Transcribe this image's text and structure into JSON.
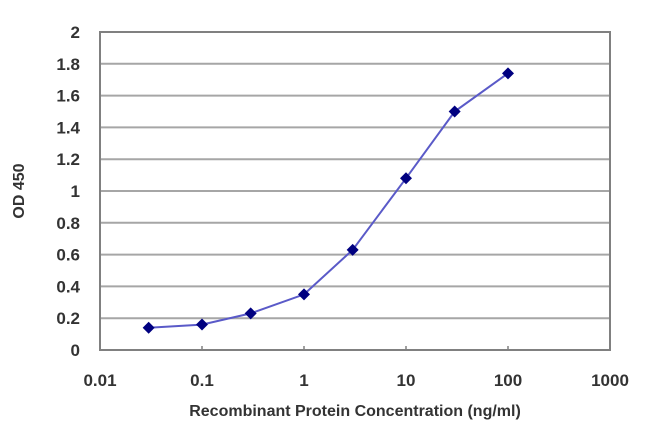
{
  "chart_data": {
    "type": "line",
    "title": "",
    "xlabel": "Recombinant Protein Concentration (ng/ml)",
    "ylabel": "OD 450",
    "xscale": "log",
    "xlim": [
      0.01,
      1000
    ],
    "ylim": [
      0,
      2
    ],
    "x_ticks": [
      "0.01",
      "0.1",
      "1",
      "10",
      "100",
      "1000"
    ],
    "y_ticks": [
      "0",
      "0.2",
      "0.4",
      "0.6",
      "0.8",
      "1",
      "1.2",
      "1.4",
      "1.6",
      "1.8",
      "2"
    ],
    "grid": {
      "horizontal": true,
      "vertical": false
    },
    "legend": null,
    "series": [
      {
        "name": "OD 450",
        "x": [
          0.03,
          0.1,
          0.3,
          1,
          3,
          10,
          30,
          100
        ],
        "values": [
          0.14,
          0.16,
          0.23,
          0.35,
          0.63,
          1.08,
          1.5,
          1.74
        ],
        "line_color": "#5a5ac8",
        "marker": "diamond",
        "marker_color": "#000080"
      }
    ]
  },
  "colors": {
    "grid": "#a6a6a6",
    "axis": "#808080",
    "text": "#333333"
  }
}
